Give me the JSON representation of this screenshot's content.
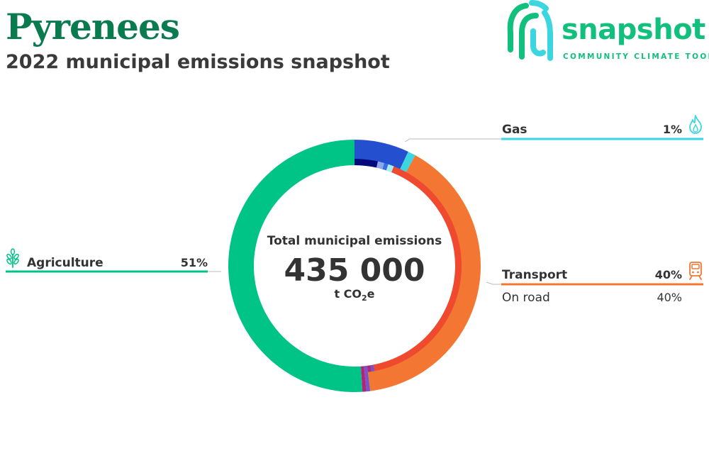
{
  "title": "Pyrenees",
  "subtitle": "2022 municipal emissions snapshot",
  "logo": {
    "word": "snapshot",
    "tagline": "COMMUNITY CLIMATE TOOL"
  },
  "colors": {
    "agriculture": "#00c386",
    "transport": "#f37733",
    "transport_inner": "#ef4a2f",
    "gas": "#3bd6e0",
    "electricity": "#2450d0",
    "electricity_inner": "#050a7a",
    "title": "#0a7a4f",
    "brand": "#10c07c"
  },
  "chart_data": {
    "type": "donut",
    "center": {
      "label": "Total municipal emissions",
      "value": "435 000",
      "unit_prefix": "t CO",
      "unit_sub": "2",
      "unit_suffix": "e"
    },
    "outer": [
      {
        "key": "electricity",
        "value": 7.0
      },
      {
        "key": "gas",
        "value": 1.0
      },
      {
        "key": "transport",
        "value": 40.0
      },
      {
        "key": "waste_a",
        "value": 0.5,
        "color": "#7b52c8"
      },
      {
        "key": "waste_b",
        "value": 0.5,
        "color": "#b0247a"
      },
      {
        "key": "agriculture",
        "value": 51.0
      }
    ],
    "inner": [
      {
        "key": "electricity_inner",
        "value": 3.5
      },
      {
        "key": "e1",
        "value": 1.0,
        "color": "#8fa6f0"
      },
      {
        "key": "e2",
        "value": 0.6,
        "color": "#3a6fe0"
      },
      {
        "key": "gas_inner",
        "value": 0.9,
        "color": "#a6eef2"
      },
      {
        "key": "transport_inner",
        "value": 41.0
      },
      {
        "key": "gap1",
        "value": 0.5,
        "color": "#7b52c8"
      },
      {
        "key": "gap2",
        "value": 0.5,
        "color": "#b0247a"
      }
    ],
    "callouts": {
      "gas": {
        "label": "Gas",
        "value": "1%"
      },
      "transport": {
        "label": "Transport",
        "value": "40%",
        "sub_label": "On road",
        "sub_value": "40%"
      },
      "agriculture": {
        "label": "Agriculture",
        "value": "51%"
      }
    },
    "icons": {
      "gas": "flame-icon",
      "transport": "train-icon",
      "agriculture": "wheat-icon"
    }
  }
}
